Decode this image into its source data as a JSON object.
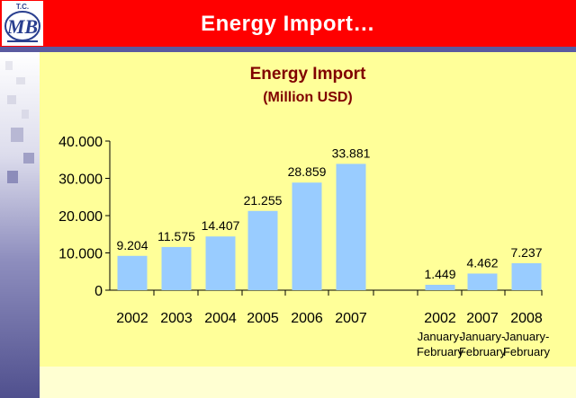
{
  "header": {
    "title": "Energy Import…",
    "logo": {
      "icon": "tcmb-logo-icon",
      "letters": "MB",
      "top_text": "T.C."
    }
  },
  "colors": {
    "header_red": "#ff0000",
    "bar_blue": "#99ccff",
    "panel_yellow": "#ffff99",
    "title_red": "#800000"
  },
  "chart_data": {
    "type": "bar",
    "title": "Energy Import",
    "subtitle": "(Million USD)",
    "xlabel": "",
    "ylabel": "",
    "ylim": [
      0,
      40000
    ],
    "yticks": [
      {
        "value": 0,
        "label": "0"
      },
      {
        "value": 10000,
        "label": "10.000"
      },
      {
        "value": 20000,
        "label": "20.000"
      },
      {
        "value": 30000,
        "label": "30.000"
      },
      {
        "value": 40000,
        "label": "40.000"
      }
    ],
    "grid": false,
    "legend": "none",
    "groups": [
      {
        "categories": [
          {
            "label": "2002",
            "sublabel": "",
            "value": 9204,
            "value_label": "9.204"
          },
          {
            "label": "2003",
            "sublabel": "",
            "value": 11575,
            "value_label": "11.575"
          },
          {
            "label": "2004",
            "sublabel": "",
            "value": 14407,
            "value_label": "14.407"
          },
          {
            "label": "2005",
            "sublabel": "",
            "value": 21255,
            "value_label": "21.255"
          },
          {
            "label": "2006",
            "sublabel": "",
            "value": 28859,
            "value_label": "28.859"
          },
          {
            "label": "2007",
            "sublabel": "",
            "value": 33881,
            "value_label": "33.881"
          }
        ]
      },
      {
        "categories": [
          {
            "label": "2002",
            "sublabel": [
              "January-",
              "February"
            ],
            "value": 1449,
            "value_label": "1.449"
          },
          {
            "label": "2007",
            "sublabel": [
              "January-",
              "February"
            ],
            "value": 4462,
            "value_label": "4.462"
          },
          {
            "label": "2008",
            "sublabel": [
              "January-",
              "February"
            ],
            "value": 7237,
            "value_label": "7.237"
          }
        ]
      }
    ]
  }
}
